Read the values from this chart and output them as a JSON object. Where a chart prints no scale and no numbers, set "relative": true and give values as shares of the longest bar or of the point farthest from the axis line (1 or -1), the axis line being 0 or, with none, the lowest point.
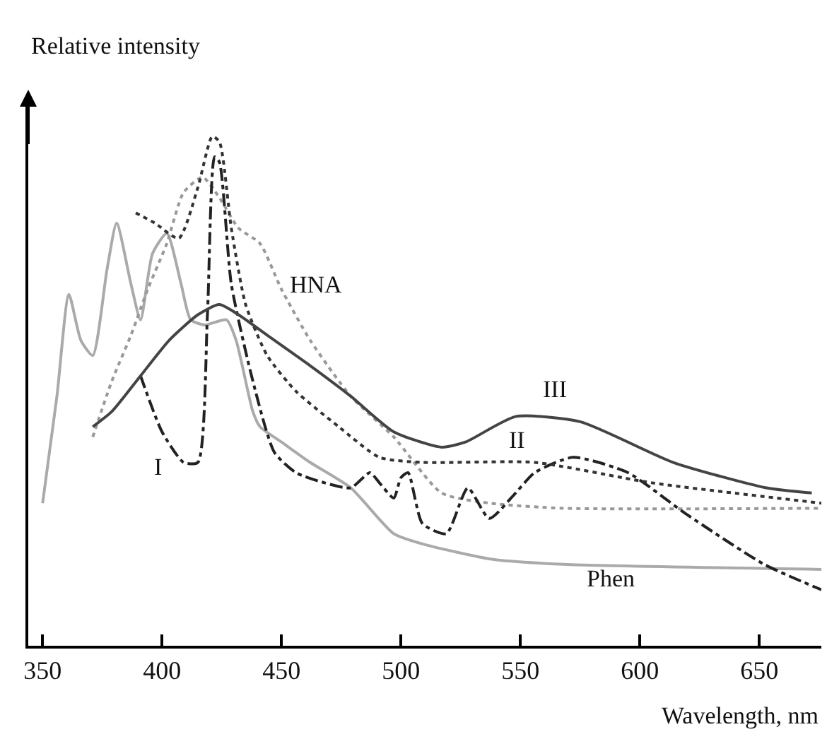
{
  "chart_data": {
    "type": "line",
    "relative": true,
    "xlabel": "Wavelength, nm",
    "ylabel": "Relative intensity",
    "xlim": [
      344,
      676
    ],
    "xticks": [
      350,
      400,
      450,
      500,
      550,
      600,
      650
    ],
    "marker": "none",
    "annotations": [
      "HNA",
      "III",
      "II",
      "I",
      "Phen"
    ],
    "series": [
      {
        "color": "#aaaaaa",
        "line_style": "solid",
        "x": [
          350,
          356,
          361,
          366,
          371,
          377,
          381,
          387,
          391,
          396,
          402,
          408,
          412,
          418,
          427,
          431,
          438,
          441,
          450,
          462,
          479,
          497,
          509,
          538,
          568,
          676
        ],
        "values": [
          0.28,
          0.49,
          0.69,
          0.6,
          0.57,
          0.74,
          0.83,
          0.71,
          0.64,
          0.77,
          0.81,
          0.71,
          0.64,
          0.63,
          0.64,
          0.6,
          0.46,
          0.43,
          0.4,
          0.36,
          0.31,
          0.22,
          0.2,
          0.17,
          0.16,
          0.15
        ]
      },
      {
        "color": "#999999",
        "line_style": "dotted",
        "x": [
          371,
          379,
          387,
          394,
          402,
          409,
          417,
          424,
          432,
          441,
          450,
          462,
          479,
          497,
          517,
          537,
          568,
          676
        ],
        "values": [
          0.41,
          0.52,
          0.61,
          0.7,
          0.79,
          0.89,
          0.92,
          0.88,
          0.82,
          0.79,
          0.7,
          0.6,
          0.49,
          0.41,
          0.3,
          0.28,
          0.27,
          0.27
        ]
      },
      {
        "color": "#222222",
        "line_style": "dashdot",
        "x": [
          391,
          400,
          409,
          415,
          419,
          422,
          424,
          429,
          438,
          447,
          456,
          468,
          479,
          487,
          491,
          497,
          500,
          503,
          509,
          519,
          528,
          537,
          548,
          556,
          572,
          595,
          619,
          652,
          676
        ],
        "values": [
          0.53,
          0.42,
          0.36,
          0.36,
          0.65,
          0.96,
          0.95,
          0.71,
          0.52,
          0.38,
          0.34,
          0.32,
          0.31,
          0.34,
          0.32,
          0.29,
          0.33,
          0.34,
          0.24,
          0.22,
          0.31,
          0.25,
          0.3,
          0.34,
          0.37,
          0.34,
          0.26,
          0.16,
          0.11
        ]
      },
      {
        "color": "#333333",
        "line_style": "dotted",
        "x": [
          389,
          397,
          407,
          415,
          421,
          424,
          429,
          435,
          444,
          456,
          474,
          491,
          509,
          556,
          605,
          676
        ],
        "values": [
          0.85,
          0.83,
          0.8,
          0.9,
          1.0,
          0.99,
          0.82,
          0.67,
          0.57,
          0.5,
          0.43,
          0.37,
          0.36,
          0.36,
          0.32,
          0.28
        ]
      },
      {
        "color": "#444444",
        "line_style": "solid",
        "x": [
          371,
          379,
          391,
          403,
          415,
          424,
          432,
          444,
          462,
          479,
          497,
          517,
          527,
          548,
          575,
          614,
          653,
          672
        ],
        "values": [
          0.43,
          0.46,
          0.53,
          0.6,
          0.65,
          0.67,
          0.65,
          0.61,
          0.55,
          0.49,
          0.42,
          0.39,
          0.4,
          0.45,
          0.44,
          0.36,
          0.31,
          0.3
        ]
      }
    ]
  }
}
